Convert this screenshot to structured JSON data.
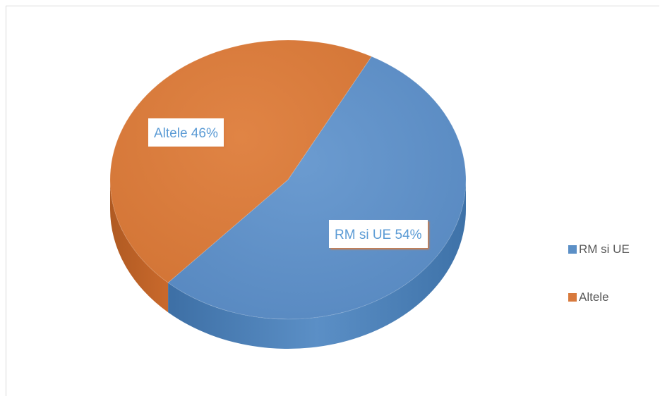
{
  "chart_data": {
    "type": "pie",
    "title": "",
    "categories": [
      "RM si UE",
      "Altele"
    ],
    "values": [
      54,
      46
    ],
    "value_format": "percent",
    "data_labels": [
      "RM si UE 54%",
      "Altele  46%"
    ],
    "colors": [
      "#5b8fc6",
      "#d87a3d"
    ],
    "legend": {
      "placement": "right",
      "entries": [
        "RM si UE",
        "Altele"
      ]
    },
    "style": "3d"
  }
}
